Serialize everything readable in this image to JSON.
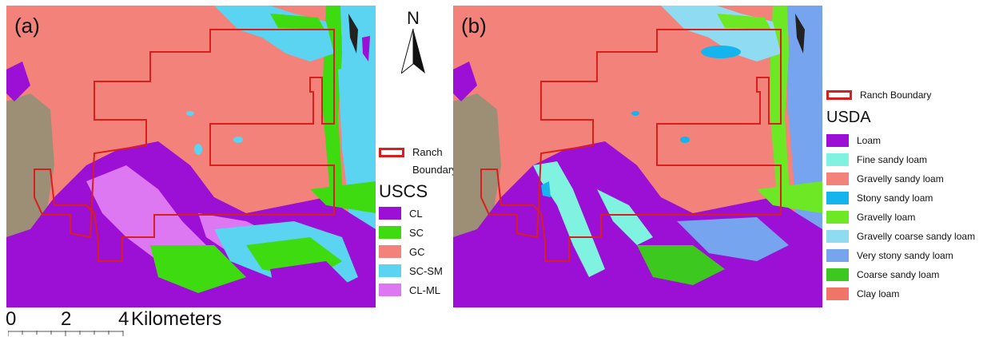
{
  "panels": {
    "a": {
      "label": "(a)"
    },
    "b": {
      "label": "(b)"
    }
  },
  "north_arrow": {
    "letter": "N"
  },
  "legend_a": {
    "boundary_label_1": "Ranch",
    "boundary_label_2": "Boundary",
    "title": "USCS",
    "items": [
      {
        "label": "CL",
        "color": "#9b10d4"
      },
      {
        "label": "SC",
        "color": "#3ddb10"
      },
      {
        "label": "GC",
        "color": "#f2827a"
      },
      {
        "label": "SC-SM",
        "color": "#5ad4f0"
      },
      {
        "label": "CL-ML",
        "color": "#dd77f2"
      }
    ]
  },
  "legend_b": {
    "boundary_label": "Ranch Boundary",
    "title": "USDA",
    "items": [
      {
        "label": "Loam",
        "color": "#9b10d4"
      },
      {
        "label": "Fine sandy loam",
        "color": "#7ff2e0"
      },
      {
        "label": "Gravelly sandy loam",
        "color": "#f2827a"
      },
      {
        "label": "Stony sandy loam",
        "color": "#14b4ee"
      },
      {
        "label": "Gravelly loam",
        "color": "#6de824"
      },
      {
        "label": "Gravelly coarse sandy loam",
        "color": "#8fdcf2"
      },
      {
        "label": "Very stony sandy loam",
        "color": "#76a4ee"
      },
      {
        "label": "Coarse sandy loam",
        "color": "#3cc81e"
      },
      {
        "label": "Clay loam",
        "color": "#f07566"
      }
    ]
  },
  "scale_bar": {
    "ticks": [
      "0",
      "2",
      "4"
    ],
    "unit": "Kilometers"
  },
  "colors": {
    "boundary": "#d91e1e",
    "terrain": "#9c8f75"
  }
}
